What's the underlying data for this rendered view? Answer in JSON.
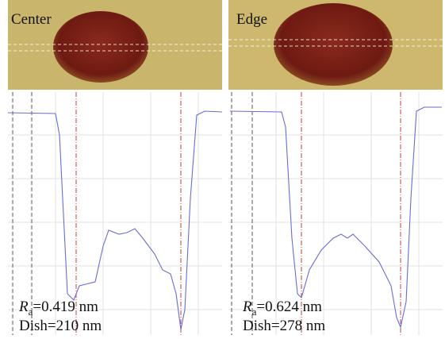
{
  "panels": [
    {
      "label": "Center",
      "ra_symbol": "R",
      "ra_subscript": "a",
      "ra_value": "=0.419 nm",
      "dish": "Dish=210 nm"
    },
    {
      "label": "Edge",
      "ra_symbol": "R",
      "ra_subscript": "a",
      "ra_value": "=0.624 nm",
      "dish": "Dish=278 nm"
    }
  ]
}
